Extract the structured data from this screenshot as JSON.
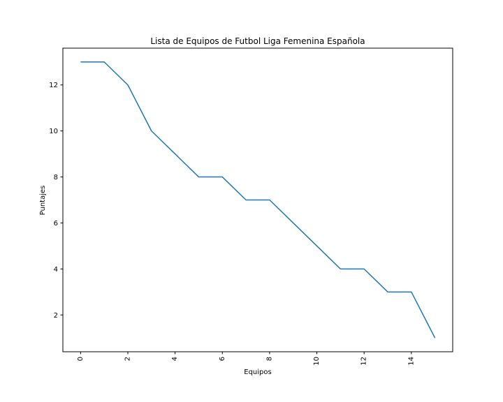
{
  "chart_data": {
    "type": "line",
    "title": "Lista de Equipos de Futbol Liga Femenina Española",
    "xlabel": "Equipos",
    "ylabel": "Puntajes",
    "x": [
      0,
      1,
      2,
      3,
      4,
      5,
      6,
      7,
      8,
      9,
      10,
      11,
      12,
      13,
      14,
      15
    ],
    "series": [
      {
        "values": [
          13,
          13,
          12,
          10,
          9,
          8,
          8,
          7,
          7,
          6,
          5,
          4,
          4,
          3,
          3,
          1
        ],
        "color": "#1f77b4"
      }
    ],
    "xticks": [
      0,
      2,
      4,
      6,
      8,
      10,
      12,
      14
    ],
    "yticks": [
      2,
      4,
      6,
      8,
      10,
      12
    ],
    "xlim": [
      -0.75,
      15.75
    ],
    "ylim": [
      0.4,
      13.6
    ],
    "grid": false,
    "legend": "none",
    "xtick_rotation": 90
  }
}
